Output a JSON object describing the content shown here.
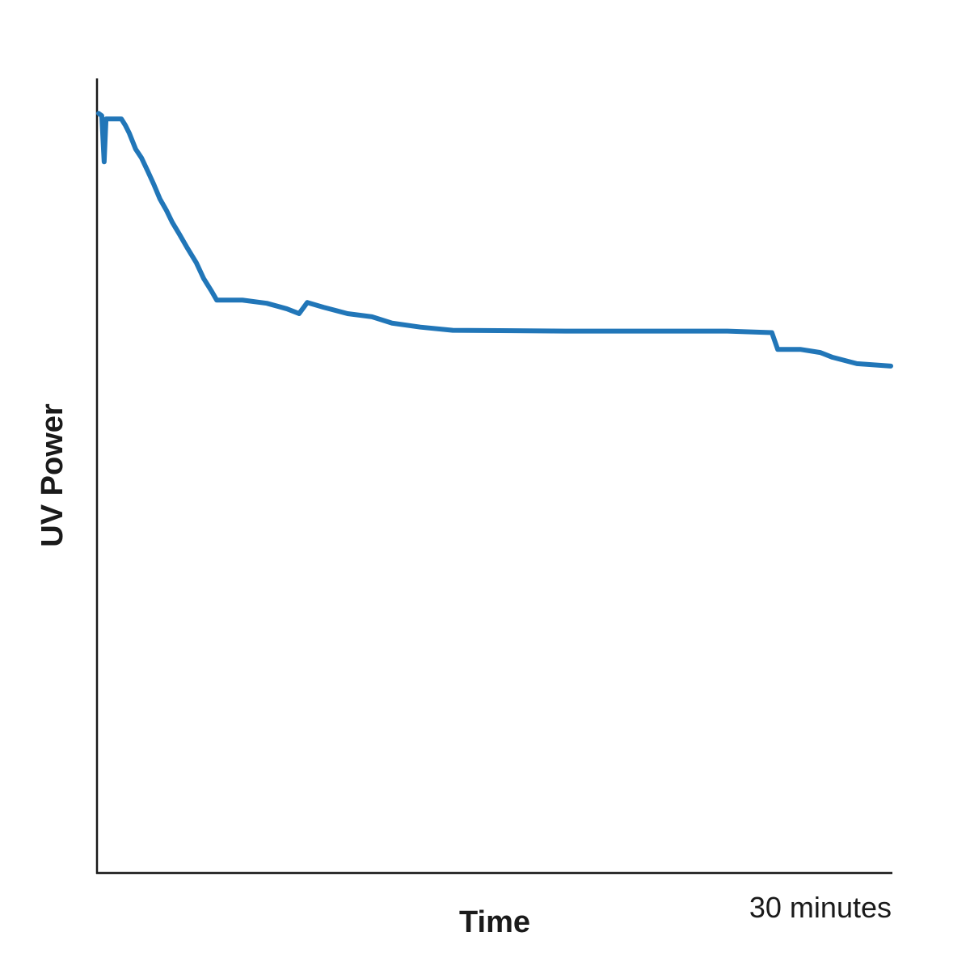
{
  "chart_data": {
    "type": "line",
    "x_label": "Time",
    "y_label": "UV Power",
    "xlim": [
      0,
      30
    ],
    "ylim": [
      0,
      100
    ],
    "xticks": [
      {
        "value": 30,
        "label": "30 minutes"
      }
    ],
    "series": [
      {
        "name": "UV Power",
        "color": "#2176b8",
        "x": [
          0.06,
          0.18,
          0.27,
          0.34,
          0.92,
          1.07,
          1.22,
          1.46,
          1.68,
          1.92,
          2.14,
          2.38,
          2.62,
          2.84,
          3.11,
          3.42,
          3.75,
          4.03,
          4.33,
          4.52,
          5.49,
          6.41,
          7.17,
          7.63,
          7.94,
          8.55,
          9.46,
          10.38,
          11.14,
          12.21,
          13.43,
          17.7,
          23.8,
          25.48,
          25.7,
          26.55,
          27.31,
          27.77,
          28.69,
          29.97
        ],
        "values": [
          95.6,
          95.3,
          89.5,
          94.9,
          94.9,
          94.1,
          93.1,
          91.1,
          90.0,
          88.3,
          86.7,
          84.8,
          83.4,
          81.9,
          80.4,
          78.6,
          76.8,
          74.8,
          73.2,
          72.1,
          72.1,
          71.7,
          71.0,
          70.4,
          71.8,
          71.2,
          70.4,
          70.0,
          69.2,
          68.7,
          68.3,
          68.2,
          68.2,
          68.0,
          65.9,
          65.9,
          65.5,
          64.9,
          64.1,
          63.8
        ]
      }
    ]
  }
}
